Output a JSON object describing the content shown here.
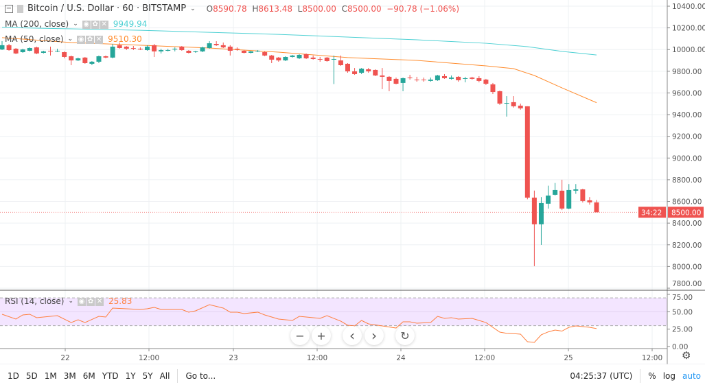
{
  "header": {
    "symbol": "Bitcoin / U.S. Dollar · 60 · BITSTAMP",
    "open_label": "O",
    "open": "8590.78",
    "high_label": "H",
    "high": "8613.48",
    "low_label": "L",
    "low": "8500.00",
    "close_label": "C",
    "close": "8500.00",
    "change": "−90.78 (−1.06%)"
  },
  "indicators": {
    "ma200": {
      "label": "MA (200, close)",
      "value": "9949.94",
      "color": "#4dd0d3"
    },
    "ma50": {
      "label": "MA (50, close)",
      "value": "9510.30",
      "color": "#ff8c2e"
    },
    "rsi": {
      "label": "RSI (14, close)",
      "value": "25.83",
      "color": "#ff7f3e"
    }
  },
  "price_axis": {
    "labels": [
      "10400.00",
      "10200.00",
      "10000.00",
      "9800.00",
      "9600.00",
      "9400.00",
      "9200.00",
      "9000.00",
      "8800.00",
      "8600.00",
      "8400.00",
      "8200.00",
      "8000.00",
      "7800.00"
    ],
    "last_price": "8500.00",
    "countdown": "34:22"
  },
  "rsi_axis": {
    "labels": [
      "75.00",
      "50.00",
      "25.00",
      "0.00"
    ]
  },
  "time_axis": {
    "labels": [
      "22",
      "12:00",
      "23",
      "12:00",
      "24",
      "12:00",
      "25",
      "12:00"
    ]
  },
  "colors": {
    "up": "#26a69a",
    "down": "#ef5350",
    "rsi_band": "#f3e5ff"
  },
  "chart_data": {
    "type": "candlestick",
    "interval": "60",
    "ohlc": [
      [
        10001,
        10077,
        9995,
        10040
      ],
      [
        10040,
        10052,
        9989,
        9995
      ],
      [
        10008,
        10014,
        9957,
        9964
      ],
      [
        9976,
        10008,
        9970,
        10001
      ],
      [
        9989,
        10020,
        9983,
        10014
      ],
      [
        10020,
        10027,
        9957,
        9964
      ],
      [
        9970,
        9989,
        9964,
        9983
      ],
      [
        9989,
        10027,
        9945,
        9983
      ],
      [
        9983,
        10008,
        9976,
        9989
      ],
      [
        9976,
        9983,
        9919,
        9932
      ],
      [
        9938,
        9945,
        9856,
        9900
      ],
      [
        9900,
        9926,
        9894,
        9919
      ],
      [
        9926,
        9932,
        9869,
        9875
      ],
      [
        9869,
        9894,
        9856,
        9888
      ],
      [
        9888,
        9945,
        9875,
        9938
      ],
      [
        9938,
        9945,
        9919,
        9926
      ],
      [
        9926,
        10052,
        9919,
        10027
      ],
      [
        10040,
        10065,
        10008,
        10014
      ],
      [
        10027,
        10033,
        9995,
        10008
      ],
      [
        10014,
        10033,
        9995,
        10008
      ],
      [
        10008,
        10020,
        9995,
        10001
      ],
      [
        9995,
        10040,
        9989,
        10027
      ],
      [
        10040,
        10052,
        9932,
        9983
      ],
      [
        9983,
        10008,
        9964,
        9995
      ],
      [
        9989,
        10008,
        9983,
        9995
      ],
      [
        10001,
        10020,
        9983,
        10008
      ],
      [
        10027,
        10033,
        9989,
        9995
      ],
      [
        9989,
        9995,
        9964,
        9970
      ],
      [
        9976,
        9989,
        9970,
        9983
      ],
      [
        9983,
        10027,
        9976,
        10020
      ],
      [
        10014,
        10077,
        10008,
        10058
      ],
      [
        10052,
        10077,
        10033,
        10040
      ],
      [
        10040,
        10065,
        10014,
        10020
      ],
      [
        10027,
        10040,
        9945,
        9989
      ],
      [
        10008,
        10020,
        9989,
        10001
      ],
      [
        9989,
        9995,
        9964,
        9970
      ],
      [
        9970,
        9989,
        9964,
        9983
      ],
      [
        9983,
        9995,
        9976,
        9989
      ],
      [
        9976,
        9983,
        9938,
        9945
      ],
      [
        9945,
        9951,
        9875,
        9907
      ],
      [
        9926,
        9932,
        9888,
        9900
      ],
      [
        9900,
        9938,
        9894,
        9932
      ],
      [
        9932,
        9951,
        9926,
        9945
      ],
      [
        9919,
        9957,
        9913,
        9951
      ],
      [
        9957,
        9964,
        9913,
        9919
      ],
      [
        9926,
        9945,
        9907,
        9913
      ],
      [
        9913,
        9932,
        9888,
        9907
      ],
      [
        9926,
        9932,
        9888,
        9894
      ],
      [
        9907,
        9945,
        9682,
        9913
      ],
      [
        9900,
        9945,
        9850,
        9856
      ],
      [
        9869,
        9875,
        9786,
        9799
      ],
      [
        9799,
        9830,
        9767,
        9774
      ],
      [
        9786,
        9830,
        9774,
        9824
      ],
      [
        9818,
        9830,
        9786,
        9799
      ],
      [
        9812,
        9818,
        9755,
        9761
      ],
      [
        9761,
        9830,
        9635,
        9749
      ],
      [
        9749,
        9755,
        9616,
        9711
      ],
      [
        9730,
        9742,
        9679,
        9685
      ],
      [
        9692,
        9742,
        9616,
        9736
      ],
      [
        9742,
        9767,
        9723,
        9736
      ],
      [
        9723,
        9749,
        9704,
        9717
      ],
      [
        9723,
        9742,
        9704,
        9717
      ],
      [
        9711,
        9742,
        9704,
        9723
      ],
      [
        9717,
        9767,
        9711,
        9761
      ],
      [
        9755,
        9774,
        9730,
        9736
      ],
      [
        9730,
        9761,
        9723,
        9742
      ],
      [
        9749,
        9755,
        9704,
        9717
      ],
      [
        9733,
        9749,
        9698,
        9736
      ],
      [
        9742,
        9749,
        9723,
        9730
      ],
      [
        9736,
        9755,
        9698,
        9711
      ],
      [
        9723,
        9730,
        9673,
        9685
      ],
      [
        9679,
        9692,
        9590,
        9609
      ],
      [
        9616,
        9622,
        9490,
        9502
      ],
      [
        9505,
        9571,
        9382,
        9508
      ],
      [
        9515,
        9571,
        9465,
        9477
      ],
      [
        9483,
        9502,
        9446,
        9458
      ],
      [
        9477,
        9477,
        8620,
        8635
      ],
      [
        8635,
        8700,
        8003,
        8389
      ],
      [
        8389,
        8640,
        8199,
        8585
      ],
      [
        8579,
        8745,
        8534,
        8654
      ],
      [
        8661,
        8770,
        8654,
        8705
      ],
      [
        8699,
        8800,
        8520,
        8534
      ],
      [
        8534,
        8760,
        8528,
        8705
      ],
      [
        8699,
        8760,
        8670,
        8711
      ],
      [
        8711,
        8717,
        8590,
        8604
      ],
      [
        8610,
        8640,
        8570,
        8591
      ],
      [
        8590.78,
        8613.48,
        8500,
        8500
      ]
    ],
    "ma200": [
      [
        0,
        10204
      ],
      [
        20,
        10178
      ],
      [
        40,
        10140
      ],
      [
        60,
        10090
      ],
      [
        70,
        10058
      ],
      [
        76,
        10027
      ],
      [
        81,
        9983
      ],
      [
        86,
        9949.94
      ]
    ],
    "ma50": [
      [
        0,
        10110
      ],
      [
        10,
        10065
      ],
      [
        20,
        10040
      ],
      [
        30,
        10014
      ],
      [
        40,
        9976
      ],
      [
        50,
        9926
      ],
      [
        60,
        9900
      ],
      [
        70,
        9850
      ],
      [
        74,
        9824
      ],
      [
        77,
        9761
      ],
      [
        81,
        9647
      ],
      [
        86,
        9510.3
      ]
    ],
    "rsi": [
      [
        0,
        46.4
      ],
      [
        2,
        39.5
      ],
      [
        3,
        45.4
      ],
      [
        4,
        46.4
      ],
      [
        5,
        41.5
      ],
      [
        8,
        44.4
      ],
      [
        10,
        34.5
      ],
      [
        11,
        38.5
      ],
      [
        12,
        34.5
      ],
      [
        14,
        43.4
      ],
      [
        15,
        42.4
      ],
      [
        16,
        55.3
      ],
      [
        20,
        53.3
      ],
      [
        21,
        54.3
      ],
      [
        22,
        56.3
      ],
      [
        23,
        53.3
      ],
      [
        26,
        53.3
      ],
      [
        27,
        49.4
      ],
      [
        28,
        51.3
      ],
      [
        30,
        60.2
      ],
      [
        32,
        55.3
      ],
      [
        33,
        49.4
      ],
      [
        34,
        49.4
      ],
      [
        35,
        47.4
      ],
      [
        37,
        49.4
      ],
      [
        38,
        45.4
      ],
      [
        40,
        39.5
      ],
      [
        42,
        37.5
      ],
      [
        43,
        43.4
      ],
      [
        45,
        41.5
      ],
      [
        46,
        40.5
      ],
      [
        47,
        44.4
      ],
      [
        49,
        36.5
      ],
      [
        50,
        30.6
      ],
      [
        51,
        29.6
      ],
      [
        52,
        37.5
      ],
      [
        53,
        32.6
      ],
      [
        55,
        29.6
      ],
      [
        57,
        26.6
      ],
      [
        58,
        35.5
      ],
      [
        59,
        35.5
      ],
      [
        60,
        33.6
      ],
      [
        62,
        34.5
      ],
      [
        63,
        43.4
      ],
      [
        64,
        40.5
      ],
      [
        65,
        41.5
      ],
      [
        66,
        39.5
      ],
      [
        68,
        40.5
      ],
      [
        69,
        37.5
      ],
      [
        70,
        34.5
      ],
      [
        72,
        20.7
      ],
      [
        73,
        19
      ],
      [
        74,
        18.5
      ],
      [
        75,
        17.8
      ],
      [
        76,
        6.9
      ],
      [
        77,
        5.9
      ],
      [
        78,
        16.8
      ],
      [
        79,
        21
      ],
      [
        80,
        23.7
      ],
      [
        81,
        22.2
      ],
      [
        82,
        27.6
      ],
      [
        83,
        29.6
      ],
      [
        84,
        28.6
      ],
      [
        85,
        27.6
      ],
      [
        86,
        25.83
      ]
    ],
    "price_range": [
      7800,
      10400
    ],
    "rsi_range": [
      0,
      75
    ],
    "rsi_bands": [
      30,
      70
    ]
  },
  "nav": {
    "zoom_out": "−",
    "zoom_in": "+",
    "scroll_left": "‹",
    "scroll_right": "›",
    "reset": "↻"
  },
  "toolbar": {
    "ranges": [
      "1D",
      "5D",
      "1M",
      "3M",
      "6M",
      "YTD",
      "1Y",
      "5Y",
      "All"
    ],
    "goto": "Go to...",
    "clock": "04:25:37 (UTC)",
    "percent": "%",
    "log": "log",
    "auto": "auto"
  }
}
